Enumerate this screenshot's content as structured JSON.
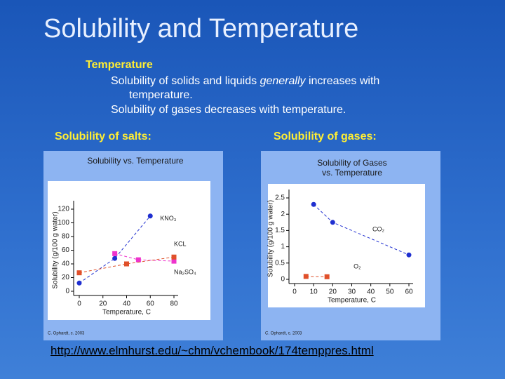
{
  "title": "Solubility and Temperature",
  "body": {
    "heading": "Temperature",
    "bullets": [
      [
        "Solubility of solids and liquids ",
        "generally",
        " increases with temperature."
      ],
      [
        "Solubility of gases decreases with temperature."
      ]
    ]
  },
  "captions": [
    "Solubility of salts:",
    "Solubility of gases:"
  ],
  "chart_data": [
    {
      "type": "line",
      "title": [
        "Solubility vs. Temperature"
      ],
      "x_label": "Temperature, C",
      "y_label": "Solubility (g/100 g water)",
      "xlim": [
        0,
        80
      ],
      "xticks": [
        0,
        20,
        40,
        60,
        80
      ],
      "ylim": [
        0,
        120
      ],
      "yticks": [
        0,
        20,
        40,
        60,
        80,
        100,
        120
      ],
      "series": [
        {
          "name": "KNO₃",
          "color": "#1f2fd0",
          "marker": "circle",
          "x": [
            0,
            30,
            60
          ],
          "values": [
            12,
            48,
            110
          ]
        },
        {
          "name": "KCL",
          "color": "#ee33cc",
          "marker": "square",
          "x": [
            30,
            50,
            80
          ],
          "values": [
            55,
            46,
            44
          ]
        },
        {
          "name": "Na₂SO₄",
          "color": "#e0502a",
          "marker": "square",
          "x": [
            0,
            40,
            80
          ],
          "values": [
            27,
            40,
            50
          ]
        }
      ],
      "credit": "C. Ophardt, c. 2003"
    },
    {
      "type": "line",
      "title": [
        "Solubility of Gases",
        "vs. Temperature"
      ],
      "x_label": "Temperature, C",
      "y_label": "Solubility (g/100 g water)",
      "xlim": [
        0,
        60
      ],
      "xticks": [
        0,
        10,
        20,
        30,
        40,
        50,
        60
      ],
      "ylim": [
        0,
        2.5
      ],
      "yticks": [
        0,
        0.5,
        1,
        1.5,
        2,
        2.5
      ],
      "series": [
        {
          "name": "CO₂",
          "color": "#1f2fd0",
          "marker": "circle",
          "x": [
            10,
            20,
            60
          ],
          "values": [
            2.3,
            1.75,
            0.75
          ]
        },
        {
          "name": "O₂",
          "color": "#e0502a",
          "marker": "square",
          "x": [
            6,
            17
          ],
          "values": [
            0.09,
            0.08
          ]
        }
      ],
      "credit": "C. Ophardt, c. 2003"
    }
  ],
  "link": "http://www.elmhurst.edu/~chm/vchembook/174temppres.html"
}
